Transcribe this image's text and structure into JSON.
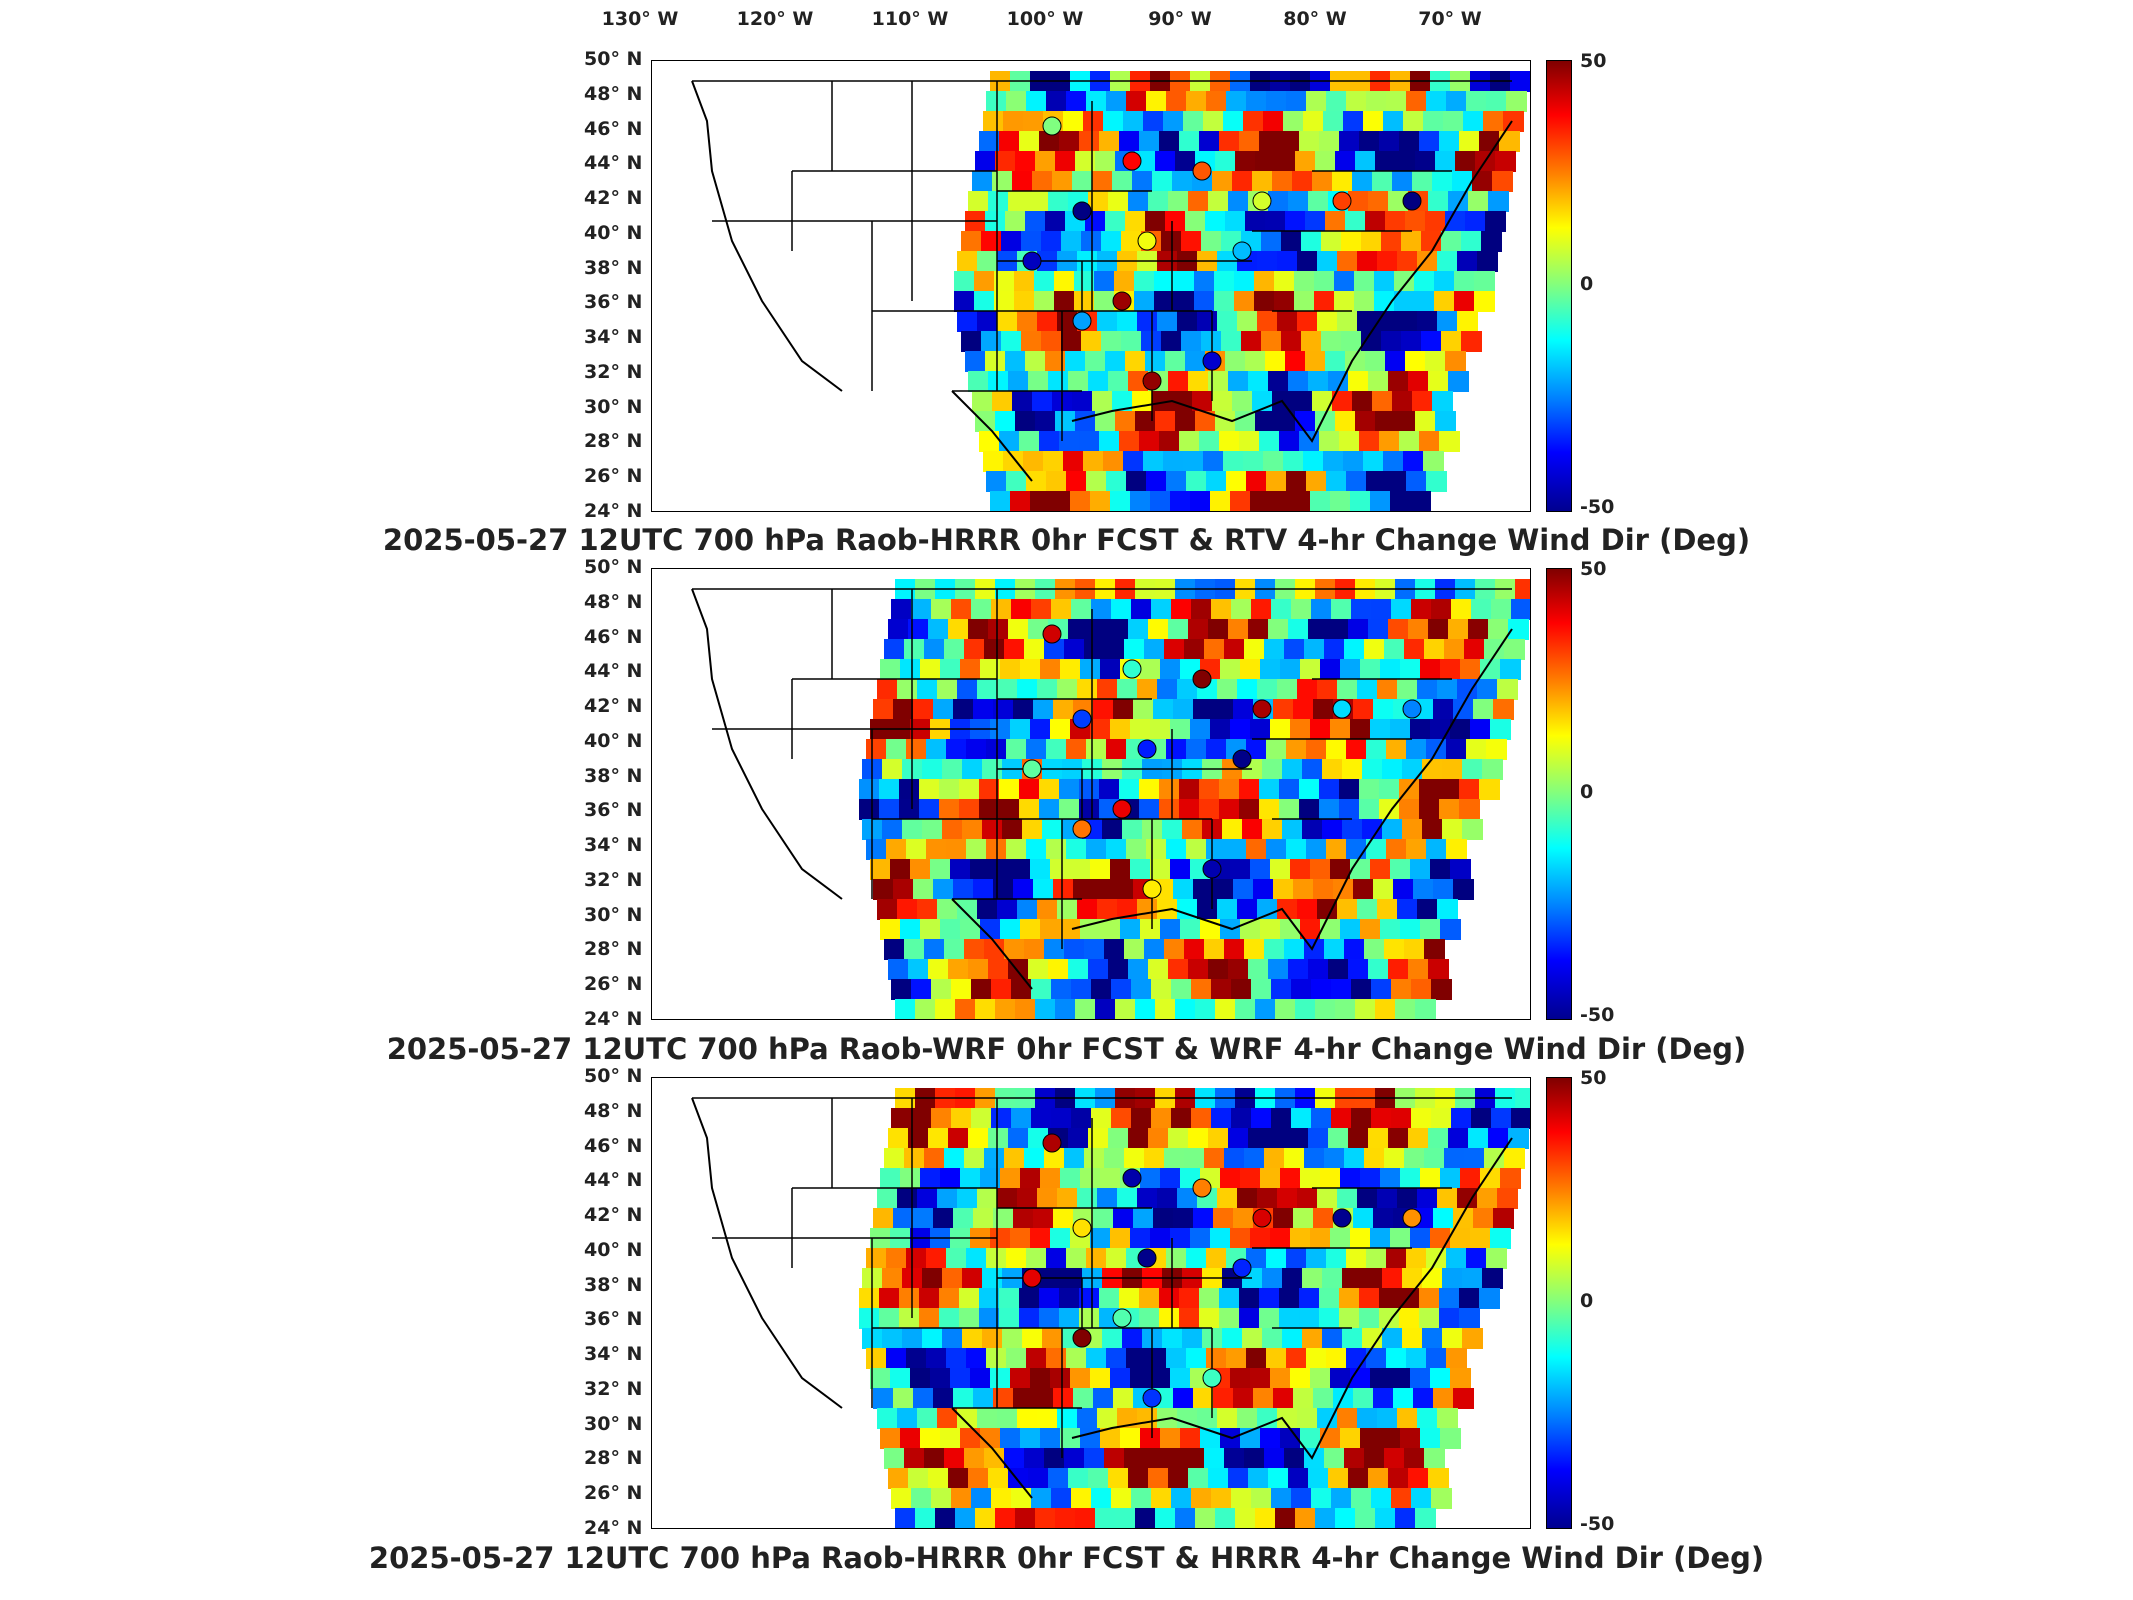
{
  "lon_labels": [
    "130° W",
    "120° W",
    "110° W",
    "100° W",
    "90° W",
    "80° W",
    "70° W"
  ],
  "lat_labels": [
    "50° N",
    "48° N",
    "46° N",
    "44° N",
    "42° N",
    "40° N",
    "38° N",
    "36° N",
    "34° N",
    "32° N",
    "30° N",
    "28° N",
    "26° N",
    "24° N"
  ],
  "colorbar": {
    "max": "50",
    "mid": "0",
    "min": "-50"
  },
  "panels": [
    {
      "title": "2025-05-27 12UTC 700 hPa Raob-HRRR 0hr FCST & RTV 4-hr Change Wind Dir (Deg)",
      "field": "rtv"
    },
    {
      "title": "2025-05-27 12UTC 700 hPa Raob-WRF 0hr FCST & WRF 4-hr Change Wind Dir (Deg)",
      "field": "wrf"
    },
    {
      "title": "2025-05-27 12UTC 700 hPa Raob-HRRR 0hr FCST & HRRR 4-hr Change Wind Dir (Deg)",
      "field": "hrrr"
    }
  ],
  "colors": {
    "max": "#800000",
    "high": "#ff0000",
    "mid": "#80ff80",
    "low": "#0000ff",
    "min": "#00008f"
  }
}
